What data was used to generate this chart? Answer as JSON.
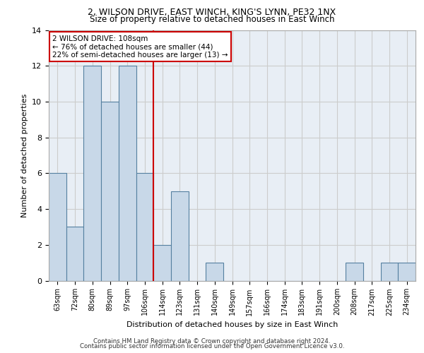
{
  "title1": "2, WILSON DRIVE, EAST WINCH, KING'S LYNN, PE32 1NX",
  "title2": "Size of property relative to detached houses in East Winch",
  "xlabel": "Distribution of detached houses by size in East Winch",
  "ylabel": "Number of detached properties",
  "categories": [
    "63sqm",
    "72sqm",
    "80sqm",
    "89sqm",
    "97sqm",
    "106sqm",
    "114sqm",
    "123sqm",
    "131sqm",
    "140sqm",
    "149sqm",
    "157sqm",
    "166sqm",
    "174sqm",
    "183sqm",
    "191sqm",
    "200sqm",
    "208sqm",
    "217sqm",
    "225sqm",
    "234sqm"
  ],
  "values": [
    6,
    3,
    12,
    10,
    12,
    6,
    2,
    5,
    0,
    1,
    0,
    0,
    0,
    0,
    0,
    0,
    0,
    1,
    0,
    1,
    1
  ],
  "bar_color": "#c8d8e8",
  "bar_edge_color": "#5580a0",
  "property_label": "2 WILSON DRIVE: 108sqm",
  "annotation_line1": "← 76% of detached houses are smaller (44)",
  "annotation_line2": "22% of semi-detached houses are larger (13) →",
  "vline_color": "#cc0000",
  "vline_x_index": 5.5,
  "annotation_box_color": "#ffffff",
  "annotation_box_edge": "#cc0000",
  "ylim": [
    0,
    14
  ],
  "yticks": [
    0,
    2,
    4,
    6,
    8,
    10,
    12,
    14
  ],
  "grid_color": "#cccccc",
  "bg_color": "#e8eef5",
  "footer1": "Contains HM Land Registry data © Crown copyright and database right 2024.",
  "footer2": "Contains public sector information licensed under the Open Government Licence v3.0."
}
